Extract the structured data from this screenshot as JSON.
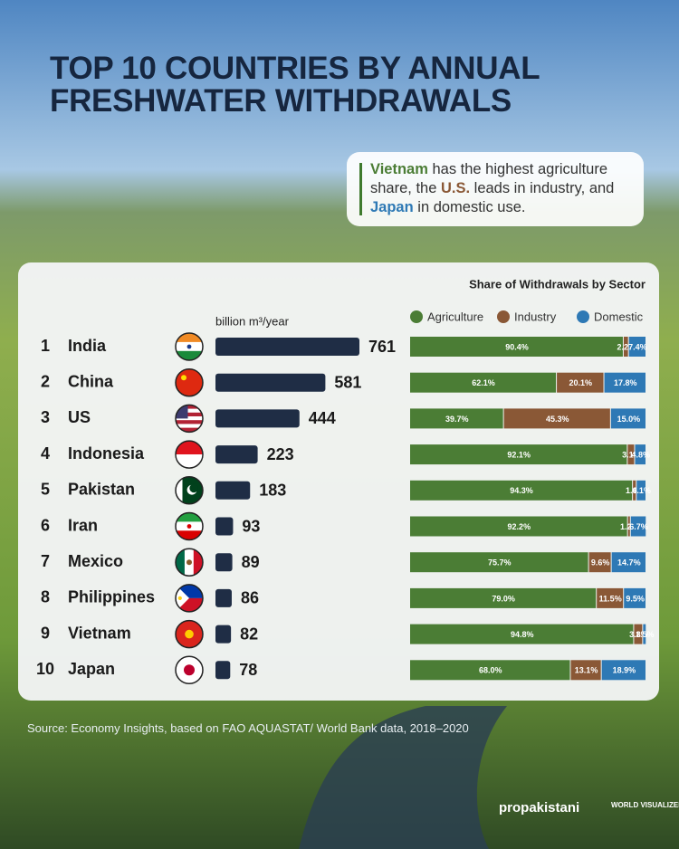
{
  "title": "TOP 10 COUNTRIES BY ANNUAL FRESHWATER WITHDRAWALS",
  "callout": [
    "Vietnam",
    " has the highest agriculture share, the ",
    "U.S.",
    " leads in industry, and ",
    "Japan",
    " in domestic use."
  ],
  "source": "Source: Economy Insights, based on FAO AQUASTAT/ World Bank data, 2018–2020",
  "logos": [
    "propakistani",
    "WORLD VISUALIZED"
  ],
  "chart_data": [
    {
      "type": "bar",
      "orientation": "horizontal",
      "unit_label": "billion m³/year",
      "color": "#1f2d45",
      "ranks": [
        "1",
        "2",
        "3",
        "4",
        "5",
        "6",
        "7",
        "8",
        "9",
        "10"
      ],
      "categories": [
        "India",
        "China",
        "US",
        "Indonesia",
        "Pakistan",
        "Iran",
        "Mexico",
        "Philippines",
        "Vietnam",
        "Japan"
      ],
      "values": [
        761,
        581,
        444,
        223,
        183,
        93,
        89,
        86,
        82,
        78
      ]
    },
    {
      "type": "stacked_bar",
      "orientation": "horizontal",
      "title": "Share of Withdrawals by Sector",
      "xlim": [
        0,
        100
      ],
      "series": [
        {
          "name": "Agriculture",
          "color": "#4b7d35",
          "values": [
            90.4,
            62.1,
            39.7,
            92.1,
            94.3,
            92.2,
            75.7,
            79.0,
            94.8,
            68.0
          ],
          "value_labels": [
            "90.4%",
            "62.1%",
            "39.7%",
            "92.1%",
            "94.3%",
            "92.2%",
            "75.7%",
            "79.0%",
            "94.8%",
            "68.0%"
          ]
        },
        {
          "name": "Industry",
          "color": "#8a5836",
          "values": [
            2.2,
            20.1,
            45.3,
            3.1,
            1.6,
            1.2,
            9.6,
            11.5,
            3.8,
            13.1
          ],
          "value_labels": [
            "2.2%",
            "20.1%",
            "45.3%",
            "3.1%",
            "1.6%",
            "1.2%",
            "9.6%",
            "11.5%",
            "3.8%",
            "13.1%"
          ]
        },
        {
          "name": "Domestic",
          "color": "#2e79b5",
          "values": [
            7.4,
            17.8,
            15.0,
            4.8,
            4.1,
            6.7,
            14.7,
            9.5,
            1.5,
            18.9
          ],
          "value_labels": [
            "7.4%",
            "17.8%",
            "15.0%",
            "4.8%",
            "4.1%",
            "6.7%",
            "14.7%",
            "9.5%",
            "1.5%",
            "18.9%"
          ]
        }
      ]
    }
  ]
}
